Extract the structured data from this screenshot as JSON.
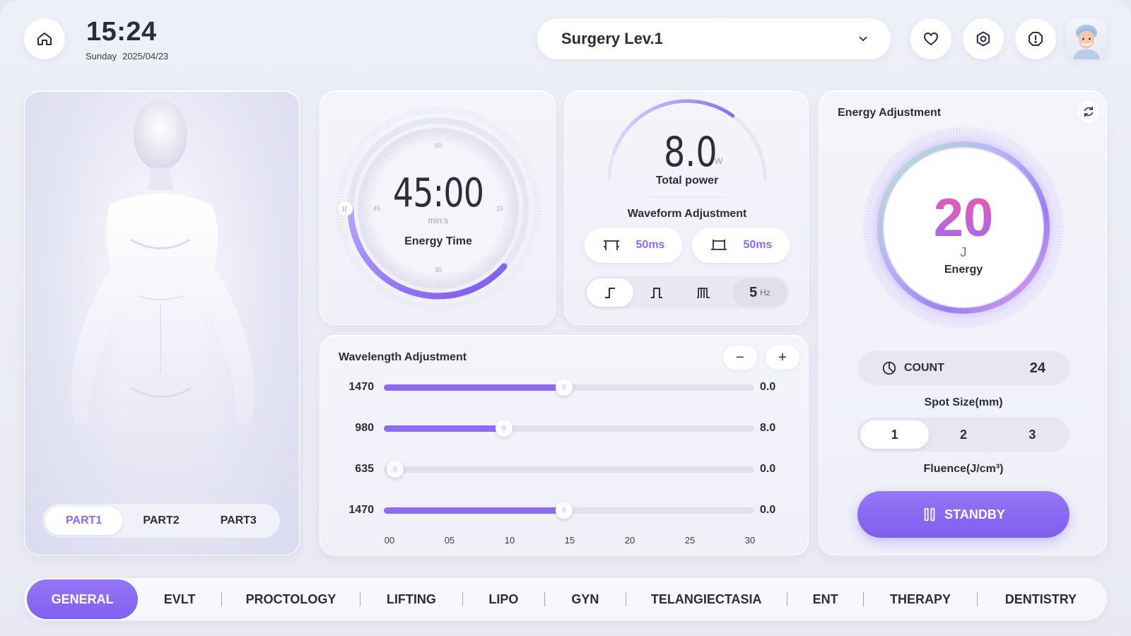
{
  "header": {
    "time": "15:24",
    "weekday": "Sunday",
    "date": "2025/04/23",
    "mode": "Surgery Lev.1"
  },
  "icons": {
    "home": "home-icon",
    "favorite": "heart-icon",
    "settings": "gear-icon",
    "alert": "alert-icon",
    "dropdown": "chevron-down-icon"
  },
  "body_parts": {
    "tabs": [
      "PART1",
      "PART2",
      "PART3"
    ],
    "selected": "PART1"
  },
  "energy_time": {
    "value": "45:00",
    "unit": "min:s",
    "label": "Energy Time",
    "dial_labels": [
      "60",
      "15",
      "30",
      "45"
    ],
    "progress": 0.55
  },
  "power": {
    "value": "8.0",
    "unit": "W",
    "label": "Total power",
    "progress": 0.5
  },
  "waveform": {
    "title": "Waveform Adjustment",
    "pulse_on": "50ms",
    "pulse_off": "50ms",
    "modes": [
      "single-pulse",
      "pulse",
      "multi-pulse"
    ],
    "selected_mode": "single-pulse",
    "frequency": "5",
    "frequency_unit": "Hz"
  },
  "wavelength": {
    "title": "Wavelength Adjustment",
    "minus": "−",
    "plus": "+",
    "rows": [
      {
        "label": "1470",
        "value": "0.0",
        "slider": 15
      },
      {
        "label": "980",
        "value": "8.0",
        "slider": 10
      },
      {
        "label": "635",
        "value": "0.0",
        "slider": 0.5
      },
      {
        "label": "1470",
        "value": "0.0",
        "slider": 15
      }
    ],
    "axis": [
      "00",
      "05",
      "10",
      "15",
      "20",
      "25",
      "30"
    ],
    "axis_max": 31
  },
  "energy": {
    "title": "Energy Adjustment",
    "value": "20",
    "unit": "J",
    "label": "Energy",
    "count_label": "COUNT",
    "count_value": "24",
    "spot_label": "Spot Size(mm)",
    "spot_options": [
      "1",
      "2",
      "3"
    ],
    "spot_selected": "1",
    "fluence_label": "Fluence(J/cm³)",
    "standby_label": "STANDBY"
  },
  "nav": {
    "items": [
      "GENERAL",
      "EVLT",
      "PROCTOLOGY",
      "LIFTING",
      "LIPO",
      "GYN",
      "TELANGIECTASIA",
      "ENT",
      "THERAPY",
      "DENTISTRY"
    ],
    "selected": "GENERAL"
  },
  "colors": {
    "accent": "#8b6cf2",
    "energy_gradient_start": "#ee5aa6",
    "energy_gradient_end": "#9c6cf2",
    "background": "#eef0f8"
  }
}
